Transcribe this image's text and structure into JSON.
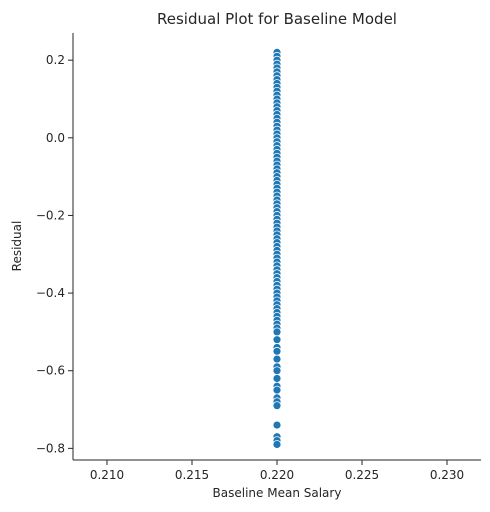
{
  "chart_data": {
    "type": "scatter",
    "title": "Residual Plot for Baseline Model",
    "xlabel": "Baseline Mean Salary",
    "ylabel": "Residual",
    "xlim": [
      0.208,
      0.232
    ],
    "ylim": [
      -0.83,
      0.27
    ],
    "xticks": [
      {
        "value": 0.21,
        "label": "0.210"
      },
      {
        "value": 0.215,
        "label": "0.215"
      },
      {
        "value": 0.22,
        "label": "0.220"
      },
      {
        "value": 0.225,
        "label": "0.225"
      },
      {
        "value": 0.23,
        "label": "0.230"
      }
    ],
    "yticks": [
      {
        "value": 0.2,
        "label": "0.2"
      },
      {
        "value": 0.0,
        "label": "0.0"
      },
      {
        "value": -0.2,
        "label": "−0.2"
      },
      {
        "value": -0.4,
        "label": "−0.4"
      },
      {
        "value": -0.6,
        "label": "−0.6"
      },
      {
        "value": -0.8,
        "label": "−0.8"
      }
    ],
    "grid": false,
    "point_color": "#1f77b4",
    "x": [
      0.22,
      0.22,
      0.22,
      0.22,
      0.22,
      0.22,
      0.22,
      0.22,
      0.22,
      0.22,
      0.22,
      0.22,
      0.22,
      0.22,
      0.22,
      0.22,
      0.22,
      0.22,
      0.22,
      0.22,
      0.22,
      0.22,
      0.22,
      0.22,
      0.22,
      0.22,
      0.22,
      0.22,
      0.22,
      0.22,
      0.22,
      0.22,
      0.22,
      0.22,
      0.22,
      0.22,
      0.22,
      0.22,
      0.22,
      0.22,
      0.22,
      0.22,
      0.22,
      0.22,
      0.22,
      0.22,
      0.22,
      0.22,
      0.22,
      0.22,
      0.22,
      0.22,
      0.22,
      0.22,
      0.22,
      0.22,
      0.22,
      0.22,
      0.22,
      0.22,
      0.22,
      0.22,
      0.22,
      0.22,
      0.22,
      0.22,
      0.22,
      0.22,
      0.22,
      0.22,
      0.22,
      0.22,
      0.22,
      0.22,
      0.22,
      0.22,
      0.22,
      0.22,
      0.22,
      0.22,
      0.22,
      0.22,
      0.22,
      0.22,
      0.22,
      0.22,
      0.22,
      0.22,
      0.22
    ],
    "y": [
      0.22,
      0.21,
      0.2,
      0.19,
      0.18,
      0.17,
      0.16,
      0.15,
      0.14,
      0.13,
      0.12,
      0.11,
      0.1,
      0.09,
      0.08,
      0.07,
      0.06,
      0.05,
      0.04,
      0.03,
      0.02,
      0.01,
      0.0,
      -0.01,
      -0.02,
      -0.03,
      -0.04,
      -0.05,
      -0.06,
      -0.07,
      -0.08,
      -0.09,
      -0.1,
      -0.11,
      -0.12,
      -0.13,
      -0.14,
      -0.15,
      -0.16,
      -0.17,
      -0.18,
      -0.19,
      -0.2,
      -0.21,
      -0.22,
      -0.23,
      -0.24,
      -0.25,
      -0.26,
      -0.27,
      -0.28,
      -0.29,
      -0.3,
      -0.31,
      -0.32,
      -0.33,
      -0.34,
      -0.35,
      -0.36,
      -0.37,
      -0.38,
      -0.39,
      -0.4,
      -0.41,
      -0.42,
      -0.43,
      -0.44,
      -0.45,
      -0.46,
      -0.47,
      -0.48,
      -0.49,
      -0.5,
      -0.52,
      -0.54,
      -0.55,
      -0.57,
      -0.59,
      -0.6,
      -0.62,
      -0.64,
      -0.65,
      -0.67,
      -0.68,
      -0.69,
      -0.74,
      -0.77,
      -0.78,
      -0.79
    ]
  }
}
